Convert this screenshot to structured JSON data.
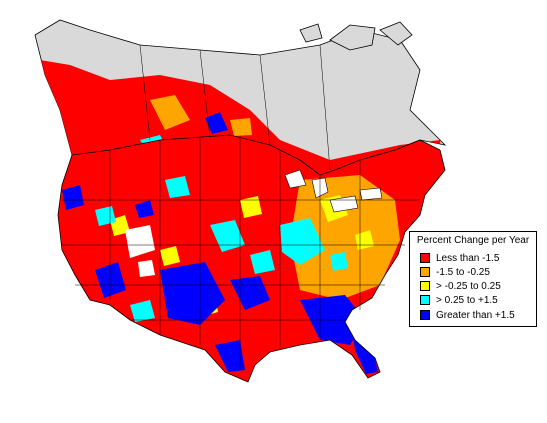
{
  "colors": {
    "canada_land": "#d9d9d9",
    "no_data": "#ffffff",
    "outline": "#000000",
    "decrease_strong": "#ff0000",
    "decrease_moderate": "#ffa500",
    "stable": "#ffff00",
    "increase_moderate": "#00ffff",
    "increase_strong": "#0000ff"
  },
  "legend": {
    "title": "Percent Change per Year",
    "placement": "right-middle",
    "entries": [
      {
        "label": "Less than -1.5",
        "color": "#ff0000"
      },
      {
        "label": "-1.5 to -0.25",
        "color": "#ffa500"
      },
      {
        "label": "> -0.25 to 0.25",
        "color": "#ffff00"
      },
      {
        "label": "> 0.25 to +1.5",
        "color": "#00ffff"
      },
      {
        "label": "Greater than +1.5",
        "color": "#0000ff"
      }
    ]
  }
}
